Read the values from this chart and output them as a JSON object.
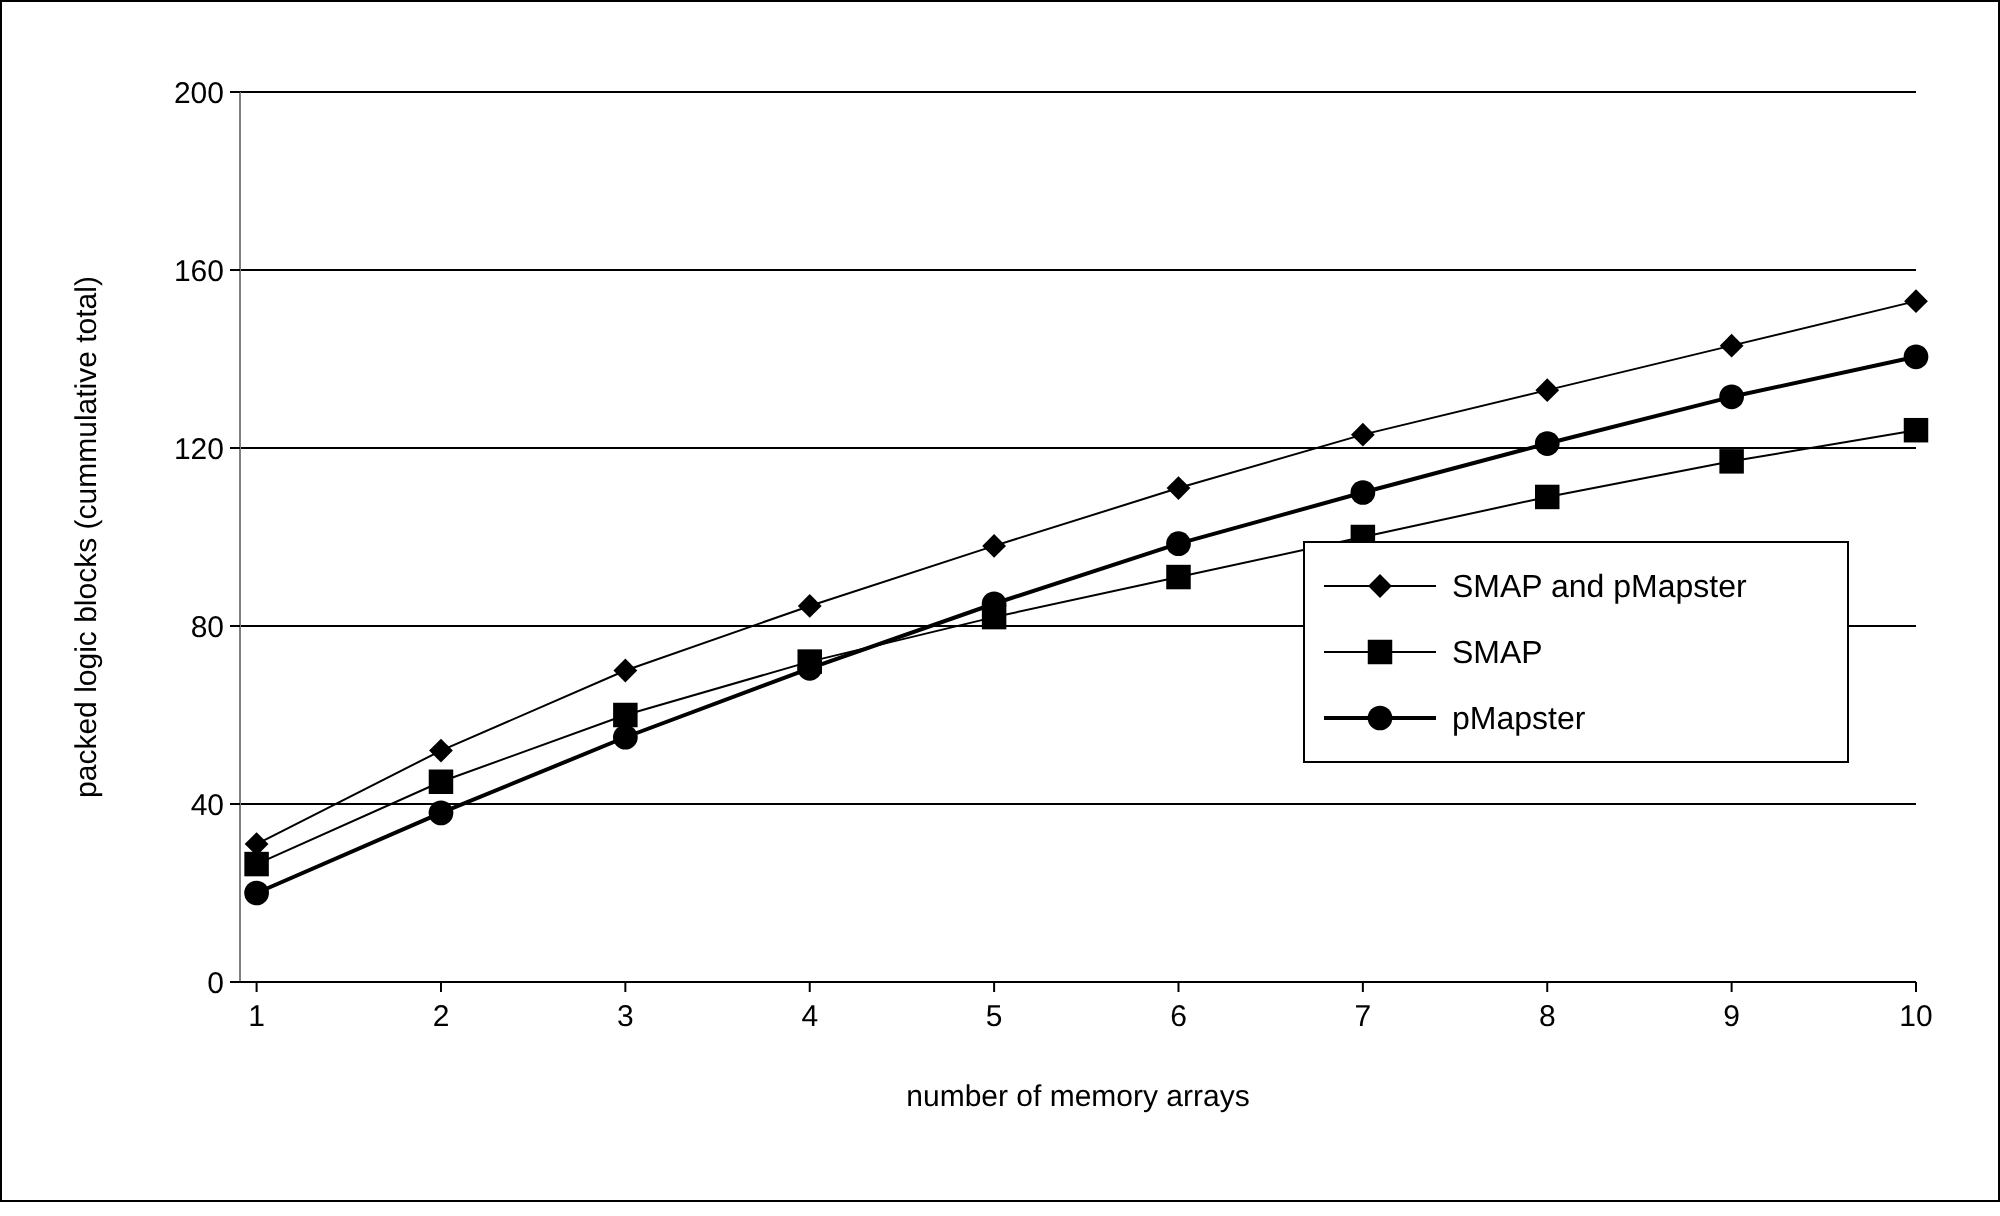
{
  "chart_data": {
    "type": "line",
    "xlabel": "number of memory arrays",
    "ylabel": "packed logic blocks (cummulative total)",
    "x": [
      1,
      2,
      3,
      4,
      5,
      6,
      7,
      8,
      9,
      10
    ],
    "xlim": [
      0.91,
      10
    ],
    "xticks": [
      1,
      2,
      3,
      4,
      5,
      6,
      7,
      8,
      9,
      10
    ],
    "ylim": [
      0,
      200
    ],
    "yticks": [
      0,
      40,
      80,
      120,
      160,
      200
    ],
    "grid": "y",
    "legend": "right",
    "series": [
      {
        "name": "SMAP and pMapster",
        "color": "#000000",
        "marker": "diamond",
        "values": [
          31,
          52,
          70,
          84.5,
          98,
          111,
          123,
          133,
          143,
          153
        ]
      },
      {
        "name": "SMAP",
        "color": "#000000",
        "marker": "square",
        "values": [
          26.5,
          45,
          60,
          72,
          82,
          91,
          100,
          109,
          117,
          124
        ]
      },
      {
        "name": "pMapster",
        "color": "#000000",
        "marker": "circle",
        "values": [
          20,
          38,
          55,
          70.5,
          85,
          98.5,
          110,
          121,
          131.5,
          140.5
        ]
      }
    ]
  }
}
